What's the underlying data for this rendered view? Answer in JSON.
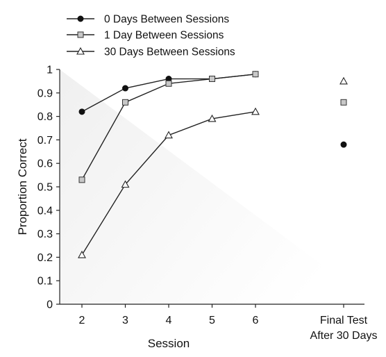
{
  "chart_data": {
    "type": "line",
    "xlabel": "Session",
    "ylabel": "Proportion Correct",
    "ylim": [
      0,
      1
    ],
    "yticks": [
      "0",
      "0.1",
      "0.2",
      "0.3",
      "0.4",
      "0.5",
      "0.6",
      "0.7",
      "0.8",
      "0.9",
      "1"
    ],
    "categories": [
      "2",
      "3",
      "4",
      "5",
      "6"
    ],
    "final_category": [
      "Final Test",
      "After 30 Days"
    ],
    "legend_position": "top-left",
    "grid": false,
    "series": [
      {
        "name": "0 Days Between Sessions",
        "marker": "circle-filled",
        "color": "#111111",
        "values": [
          0.82,
          0.92,
          0.96,
          0.96,
          0.98
        ],
        "final_value": 0.68
      },
      {
        "name": "1 Day Between Sessions",
        "marker": "square-gray",
        "color": "#c8c8c8",
        "values": [
          0.53,
          0.86,
          0.94,
          0.96,
          0.98
        ],
        "final_value": 0.86
      },
      {
        "name": "30 Days Between Sessions",
        "marker": "triangle-open",
        "color": "#ffffff",
        "values": [
          0.21,
          0.51,
          0.72,
          0.79,
          0.82
        ],
        "final_value": 0.95
      }
    ]
  }
}
